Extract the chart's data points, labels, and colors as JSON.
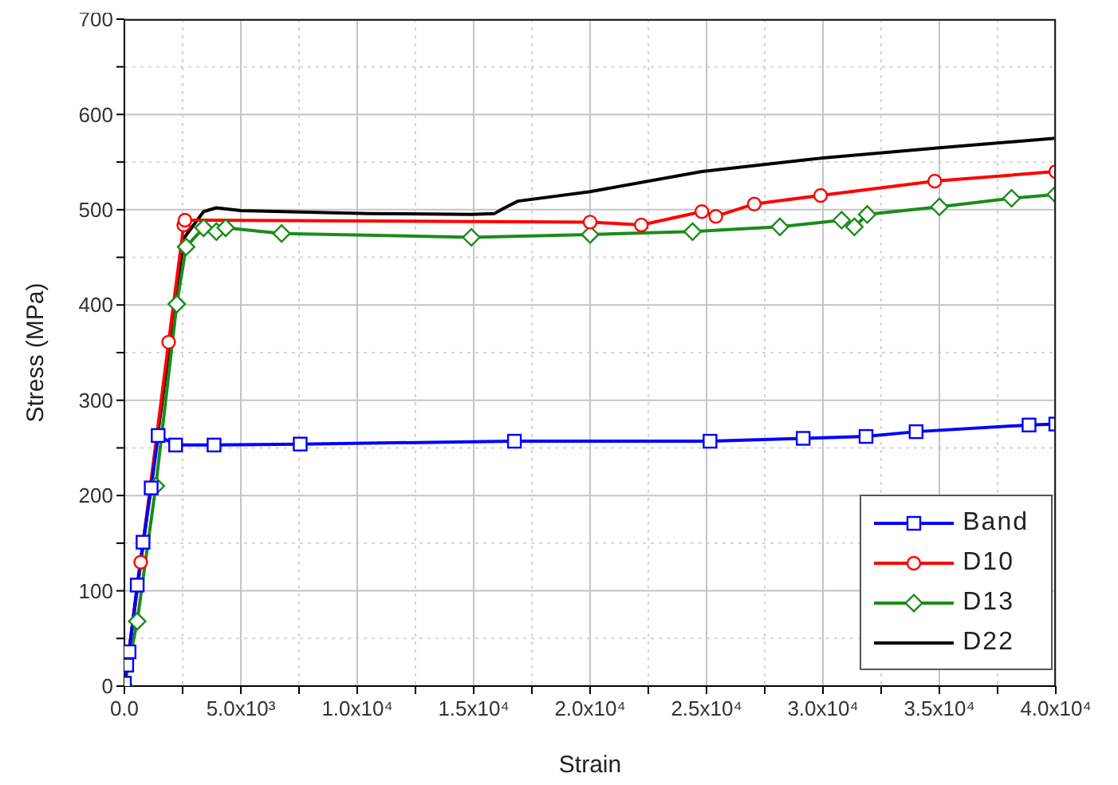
{
  "chart_data": {
    "type": "line",
    "xlabel": "Strain",
    "ylabel": "Stress (MPa)",
    "xlim": [
      0,
      40000
    ],
    "ylim": [
      0,
      700
    ],
    "xticks": [
      {
        "value": 0,
        "label": "0.0"
      },
      {
        "value": 2500,
        "label": null
      },
      {
        "value": 5000,
        "label": "5.0x10³"
      },
      {
        "value": 7500,
        "label": null
      },
      {
        "value": 10000,
        "label": "1.0x10⁴"
      },
      {
        "value": 12500,
        "label": null
      },
      {
        "value": 15000,
        "label": "1.5x10⁴"
      },
      {
        "value": 17500,
        "label": null
      },
      {
        "value": 20000,
        "label": "2.0x10⁴"
      },
      {
        "value": 22500,
        "label": null
      },
      {
        "value": 25000,
        "label": "2.5x10⁴"
      },
      {
        "value": 27500,
        "label": null
      },
      {
        "value": 30000,
        "label": "3.0x10⁴"
      },
      {
        "value": 32500,
        "label": null
      },
      {
        "value": 35000,
        "label": "3.5x10⁴"
      },
      {
        "value": 37500,
        "label": null
      },
      {
        "value": 40000,
        "label": "4.0x10⁴"
      }
    ],
    "yticks": [
      0,
      {
        "value": 50,
        "label": null
      },
      100,
      {
        "value": 150,
        "label": null
      },
      200,
      {
        "value": 250,
        "label": null
      },
      300,
      {
        "value": 350,
        "label": null
      },
      400,
      {
        "value": 450,
        "label": null
      },
      500,
      {
        "value": 550,
        "label": null
      },
      600,
      {
        "value": 650,
        "label": null
      },
      700
    ],
    "grid": true,
    "legend": "bottom right",
    "series": [
      {
        "name": "Band",
        "color": "#0000ff",
        "marker": "square",
        "x": [
          0,
          100,
          200,
          550,
          800,
          1150,
          1450,
          2200,
          3850,
          7550,
          16750,
          25150,
          29150,
          31850,
          34000,
          38850,
          40000
        ],
        "values": [
          3,
          22,
          36,
          106,
          151,
          208,
          263,
          253,
          253,
          254,
          257,
          257,
          260,
          262,
          267,
          274,
          275
        ]
      },
      {
        "name": "D10",
        "color": "#ff0000",
        "marker": "circle",
        "x": [
          0,
          700,
          1900,
          2550,
          2600,
          20000,
          22200,
          24800,
          25400,
          27050,
          29900,
          34800,
          40000
        ],
        "values": [
          0,
          130,
          361,
          484,
          489,
          487,
          484,
          498,
          493,
          506,
          515,
          530,
          540
        ]
      },
      {
        "name": "D13",
        "color": "#1a8c1a",
        "marker": "diamond",
        "x": [
          0,
          550,
          1350,
          2250,
          2650,
          3400,
          3950,
          4350,
          6750,
          14900,
          20000,
          24400,
          28150,
          30800,
          31350,
          31900,
          35000,
          38100,
          40000
        ],
        "values": [
          0,
          68,
          210,
          401,
          461,
          481,
          477,
          481,
          475,
          471,
          474,
          477,
          482,
          489,
          482,
          495,
          503,
          512,
          516
        ]
      },
      {
        "name": "D22",
        "color": "#000000",
        "marker": "none",
        "x": [
          0,
          2550,
          3400,
          3950,
          5000,
          10500,
          14900,
          15900,
          16250,
          16900,
          20000,
          24800,
          29900,
          35000,
          40000
        ],
        "values": [
          0,
          470,
          498,
          502,
          499,
          496,
          495,
          496,
          501,
          509,
          519,
          540,
          554,
          565,
          575
        ]
      }
    ]
  }
}
